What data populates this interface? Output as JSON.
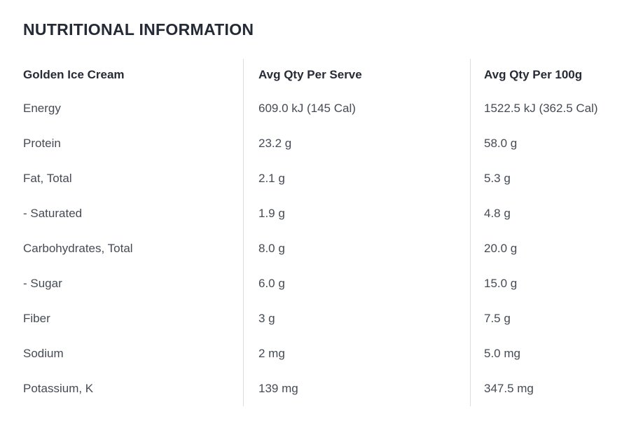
{
  "page": {
    "title": "NUTRITIONAL INFORMATION"
  },
  "colors": {
    "background": "#ffffff",
    "heading_text": "#262b36",
    "body_text": "#454b54",
    "divider": "#dddddd"
  },
  "table": {
    "columns": [
      {
        "label": "Golden Ice Cream"
      },
      {
        "label": "Avg Qty Per Serve"
      },
      {
        "label": "Avg Qty Per 100g"
      }
    ],
    "rows": [
      {
        "label": "Energy",
        "per_serve": "609.0 kJ (145 Cal)",
        "per_100g": "1522.5 kJ (362.5 Cal)"
      },
      {
        "label": "Protein",
        "per_serve": "23.2 g",
        "per_100g": "58.0 g"
      },
      {
        "label": "Fat, Total",
        "per_serve": "2.1 g",
        "per_100g": "5.3 g"
      },
      {
        "label": "- Saturated",
        "per_serve": "1.9 g",
        "per_100g": "4.8 g"
      },
      {
        "label": "Carbohydrates, Total",
        "per_serve": "8.0 g",
        "per_100g": "20.0 g"
      },
      {
        "label": "- Sugar",
        "per_serve": "6.0 g",
        "per_100g": "15.0 g"
      },
      {
        "label": "Fiber",
        "per_serve": "3 g",
        "per_100g": "7.5 g"
      },
      {
        "label": "Sodium",
        "per_serve": "2 mg",
        "per_100g": "5.0 mg"
      },
      {
        "label": "Potassium, K",
        "per_serve": "139 mg",
        "per_100g": "347.5 mg"
      }
    ]
  }
}
